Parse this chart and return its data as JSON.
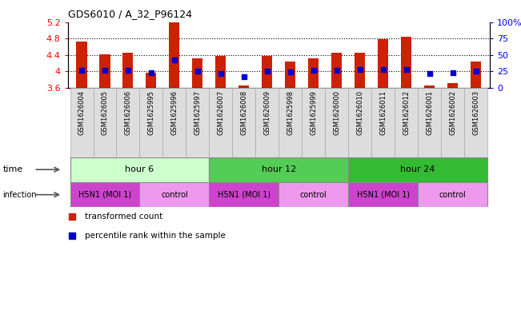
{
  "title": "GDS6010 / A_32_P96124",
  "samples": [
    "GSM1626004",
    "GSM1626005",
    "GSM1626006",
    "GSM1625995",
    "GSM1625996",
    "GSM1625997",
    "GSM1626007",
    "GSM1626008",
    "GSM1626009",
    "GSM1625998",
    "GSM1625999",
    "GSM1626000",
    "GSM1626010",
    "GSM1626011",
    "GSM1626012",
    "GSM1626001",
    "GSM1626002",
    "GSM1626003"
  ],
  "bar_values": [
    4.72,
    4.41,
    4.45,
    3.97,
    5.2,
    4.31,
    4.37,
    3.65,
    4.37,
    4.25,
    4.31,
    4.45,
    4.46,
    4.78,
    4.85,
    3.65,
    3.72,
    4.25
  ],
  "dot_values": [
    4.03,
    4.02,
    4.02,
    3.97,
    4.28,
    4.01,
    3.95,
    3.87,
    4.01,
    3.99,
    4.02,
    4.02,
    4.04,
    4.05,
    4.05,
    3.95,
    3.96,
    4.01
  ],
  "ylim": [
    3.6,
    5.2
  ],
  "yticks": [
    3.6,
    4.0,
    4.4,
    4.8,
    5.2
  ],
  "right_yticks": [
    0,
    25,
    50,
    75,
    100
  ],
  "right_ytick_labels": [
    "0",
    "25",
    "50",
    "75",
    "100%"
  ],
  "hlines": [
    4.0,
    4.4,
    4.8
  ],
  "bar_color": "#cc2200",
  "dot_color": "#0000cc",
  "bar_bottom": 3.6,
  "time_groups": [
    {
      "label": "hour 6",
      "start": 0,
      "end": 6,
      "color": "#ccffcc"
    },
    {
      "label": "hour 12",
      "start": 6,
      "end": 12,
      "color": "#55cc55"
    },
    {
      "label": "hour 24",
      "start": 12,
      "end": 18,
      "color": "#33bb33"
    }
  ],
  "infection_groups": [
    {
      "label": "H5N1 (MOI 1)",
      "start": 0,
      "end": 3,
      "color": "#cc44cc"
    },
    {
      "label": "control",
      "start": 3,
      "end": 6,
      "color": "#ee99ee"
    },
    {
      "label": "H5N1 (MOI 1)",
      "start": 6,
      "end": 9,
      "color": "#cc44cc"
    },
    {
      "label": "control",
      "start": 9,
      "end": 12,
      "color": "#ee99ee"
    },
    {
      "label": "H5N1 (MOI 1)",
      "start": 12,
      "end": 15,
      "color": "#cc44cc"
    },
    {
      "label": "control",
      "start": 15,
      "end": 18,
      "color": "#ee99ee"
    }
  ],
  "legend_items": [
    {
      "label": "transformed count",
      "color": "#cc2200"
    },
    {
      "label": "percentile rank within the sample",
      "color": "#0000cc"
    }
  ],
  "bar_width": 0.45,
  "sample_bg": "#dddddd"
}
